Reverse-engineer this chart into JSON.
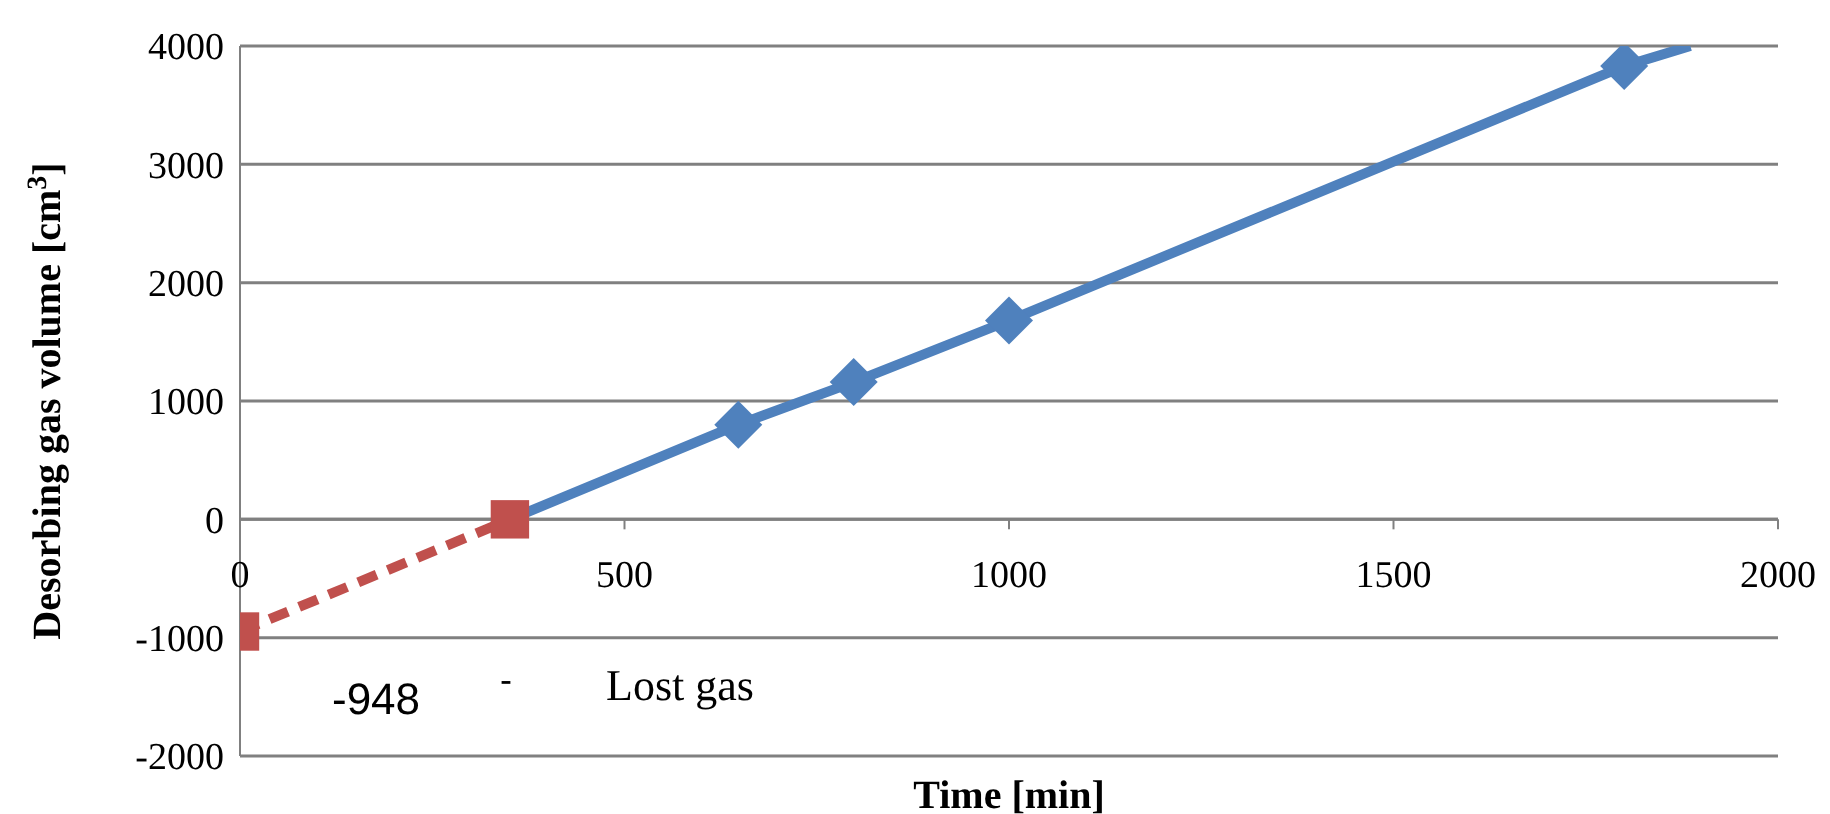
{
  "chart_data": {
    "type": "line",
    "xlabel": "Time [min]",
    "ylabel": "Desorbing gas volume [cm$^{3}$]",
    "xlim": [
      0,
      2000
    ],
    "xticks": [
      0,
      500,
      1000,
      1500,
      2000
    ],
    "ylim": [
      -2000,
      4000
    ],
    "yticks": [
      -2000,
      -1000,
      0,
      1000,
      2000,
      3000,
      4000
    ],
    "grid": "y",
    "series": [
      {
        "color": "#4f81bd",
        "x": [
          351,
          648,
          798,
          1000,
          1800,
          1886
        ],
        "values": [
          0,
          800,
          1160,
          1680,
          3830,
          4000
        ],
        "marker": "none",
        "line_style": "solid"
      },
      {
        "type": "scatter",
        "color": "#4f81bd",
        "x": [
          648,
          798,
          1000,
          1800
        ],
        "values": [
          800,
          1160,
          1680,
          3830
        ],
        "marker": "diamond"
      },
      {
        "color": "#c0504d",
        "x": [
          0,
          351
        ],
        "values": [
          -948,
          0
        ],
        "marker": "square",
        "line_style": "dashed"
      }
    ],
    "annotations": [
      "-948",
      "-",
      "Lost gas"
    ]
  }
}
